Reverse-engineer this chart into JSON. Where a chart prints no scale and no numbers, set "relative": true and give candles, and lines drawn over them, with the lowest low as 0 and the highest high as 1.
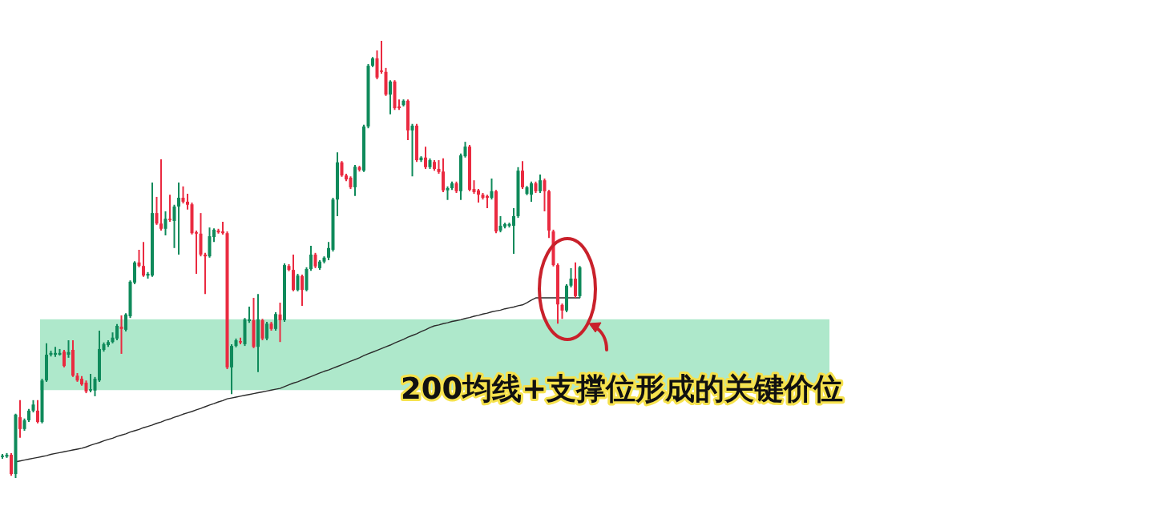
{
  "chart_data": {
    "type": "candlestick",
    "relative": true,
    "categories": [
      null,
      null,
      null,
      null,
      null,
      null,
      null,
      null,
      null,
      null,
      null,
      null,
      null,
      null,
      null,
      null,
      null,
      null,
      null,
      null,
      null,
      null,
      null,
      null,
      null,
      null,
      null,
      null,
      null,
      null,
      null,
      null,
      null,
      null,
      null,
      null,
      null,
      null,
      null,
      null,
      null,
      null,
      null,
      null,
      null,
      null,
      null,
      null,
      null,
      null,
      null,
      null,
      null,
      null,
      null,
      null,
      null,
      null,
      null,
      null,
      null,
      null,
      null,
      null,
      null,
      null,
      null,
      null,
      null,
      null,
      null,
      null,
      null,
      null,
      null,
      null,
      null,
      null,
      null,
      null,
      null,
      null,
      null,
      null,
      null,
      null,
      null,
      null,
      null,
      null,
      null,
      null,
      null,
      null,
      null,
      null,
      null,
      null,
      null,
      null,
      null,
      null,
      null,
      null,
      null,
      null,
      null,
      null,
      null,
      null,
      null,
      null,
      null,
      null,
      null,
      null,
      null,
      null,
      null,
      null,
      null,
      null,
      null,
      null,
      null,
      null,
      null,
      null,
      null,
      null,
      null,
      null
    ],
    "ohlc": [
      [
        0.048,
        0.055,
        0.044,
        0.051
      ],
      [
        0.049,
        0.057,
        0.046,
        0.053
      ],
      [
        0.053,
        0.057,
        0.005,
        0.009
      ],
      [
        0.009,
        0.147,
        0,
        0.145
      ],
      [
        0.139,
        0.178,
        0.092,
        0.112
      ],
      [
        0.112,
        0.136,
        0.108,
        0.132
      ],
      [
        0.132,
        0.158,
        0.128,
        0.154
      ],
      [
        0.154,
        0.178,
        0.15,
        0.168
      ],
      [
        0.154,
        0.178,
        0.125,
        0.128
      ],
      [
        0.128,
        0.227,
        0.125,
        0.223
      ],
      [
        0.223,
        0.308,
        0.22,
        0.282
      ],
      [
        0.282,
        0.291,
        0.278,
        0.286
      ],
      [
        0.282,
        0.3,
        0.277,
        0.286
      ],
      [
        0.282,
        0.295,
        0.28,
        0.286
      ],
      [
        0.289,
        0.293,
        0.253,
        0.256
      ],
      [
        0.282,
        0.315,
        0.275,
        0.288
      ],
      [
        0.293,
        0.315,
        0.231,
        0.234
      ],
      [
        0.234,
        0.24,
        0.22,
        0.223
      ],
      [
        0.227,
        0.233,
        0.211,
        0.214
      ],
      [
        0.218,
        0.223,
        0.194,
        0.198
      ],
      [
        0.2,
        0.238,
        0.196,
        0.203
      ],
      [
        0.2,
        0.231,
        0.187,
        0.227
      ],
      [
        0.223,
        0.337,
        0.22,
        0.295
      ],
      [
        0.293,
        0.31,
        0.289,
        0.306
      ],
      [
        0.304,
        0.315,
        0.3,
        0.311
      ],
      [
        0.311,
        0.333,
        0.308,
        0.321
      ],
      [
        0.319,
        0.352,
        0.315,
        0.348
      ],
      [
        0.346,
        0.372,
        0.284,
        0.341
      ],
      [
        0.339,
        0.377,
        0.335,
        0.374
      ],
      [
        0.37,
        0.452,
        0.366,
        0.449
      ],
      [
        0.447,
        0.496,
        0.443,
        0.493
      ],
      [
        0.493,
        0.522,
        0.482,
        0.485
      ],
      [
        0.485,
        0.54,
        0.46,
        0.463
      ],
      [
        0.463,
        0.471,
        0.456,
        0.467
      ],
      [
        0.463,
        0.676,
        0.46,
        0.606
      ],
      [
        0.606,
        0.643,
        0.579,
        0.582
      ],
      [
        0.582,
        0.729,
        0.566,
        0.57
      ],
      [
        0.57,
        0.61,
        0.555,
        0.593
      ],
      [
        0.593,
        0.648,
        0.586,
        0.59
      ],
      [
        0.588,
        0.625,
        0.526,
        0.621
      ],
      [
        0.621,
        0.676,
        0.511,
        0.641
      ],
      [
        0.641,
        0.667,
        0.628,
        0.632
      ],
      [
        0.632,
        0.65,
        0.614,
        0.625
      ],
      [
        0.626,
        0.63,
        0.557,
        0.56
      ],
      [
        0.562,
        0.566,
        0.467,
        0.559
      ],
      [
        0.559,
        0.606,
        0.507,
        0.511
      ],
      [
        0.511,
        0.515,
        0.421,
        0.507
      ],
      [
        0.507,
        0.573,
        0.504,
        0.553
      ],
      [
        0.551,
        0.571,
        0.54,
        0.568
      ],
      [
        0.566,
        0.57,
        0.559,
        0.562
      ],
      [
        0.564,
        0.586,
        0.557,
        0.56
      ],
      [
        0.56,
        0.564,
        0.249,
        0.253
      ],
      [
        0.253,
        0.306,
        0.192,
        0.302
      ],
      [
        0.302,
        0.319,
        0.299,
        0.315
      ],
      [
        0.313,
        0.321,
        0.306,
        0.31
      ],
      [
        0.306,
        0.366,
        0.302,
        0.363
      ],
      [
        0.359,
        0.392,
        0.355,
        0.363
      ],
      [
        0.361,
        0.412,
        0.297,
        0.3
      ],
      [
        0.3,
        0.421,
        0.242,
        0.363
      ],
      [
        0.361,
        0.364,
        0.315,
        0.319
      ],
      [
        0.319,
        0.357,
        0.315,
        0.353
      ],
      [
        0.353,
        0.357,
        0.337,
        0.341
      ],
      [
        0.341,
        0.379,
        0.337,
        0.375
      ],
      [
        0.374,
        0.401,
        0.311,
        0.361
      ],
      [
        0.361,
        0.491,
        0.357,
        0.487
      ],
      [
        0.485,
        0.489,
        0.473,
        0.476
      ],
      [
        0.476,
        0.511,
        0.427,
        0.43
      ],
      [
        0.43,
        0.467,
        0.427,
        0.463
      ],
      [
        0.462,
        0.465,
        0.394,
        0.43
      ],
      [
        0.43,
        0.482,
        0.427,
        0.478
      ],
      [
        0.478,
        0.531,
        0.474,
        0.511
      ],
      [
        0.511,
        0.515,
        0.48,
        0.484
      ],
      [
        0.48,
        0.498,
        0.476,
        0.495
      ],
      [
        0.495,
        0.507,
        0.491,
        0.504
      ],
      [
        0.504,
        0.54,
        0.498,
        0.526
      ],
      [
        0.522,
        0.641,
        0.518,
        0.637
      ],
      [
        0.637,
        0.745,
        0.599,
        0.722
      ],
      [
        0.722,
        0.725,
        0.689,
        0.692
      ],
      [
        0.692,
        0.696,
        0.679,
        0.683
      ],
      [
        0.687,
        0.69,
        0.661,
        0.665
      ],
      [
        0.665,
        0.716,
        0.645,
        0.712
      ],
      [
        0.711,
        0.714,
        0.701,
        0.705
      ],
      [
        0.703,
        0.808,
        0.7,
        0.804
      ],
      [
        0.804,
        0.947,
        0.8,
        0.943
      ],
      [
        0.943,
        0.963,
        0.94,
        0.96
      ],
      [
        0.96,
        0.978,
        0.912,
        0.916
      ],
      [
        0.932,
        1,
        0.925,
        0.929
      ],
      [
        0.929,
        0.938,
        0.874,
        0.877
      ],
      [
        0.877,
        0.91,
        0.832,
        0.907
      ],
      [
        0.907,
        0.91,
        0.842,
        0.846
      ],
      [
        0.85,
        0.866,
        0.842,
        0.846
      ],
      [
        0.853,
        0.866,
        0.85,
        0.863
      ],
      [
        0.863,
        0.866,
        0.773,
        0.795
      ],
      [
        0.795,
        0.81,
        0.69,
        0.806
      ],
      [
        0.806,
        0.81,
        0.723,
        0.727
      ],
      [
        0.727,
        0.736,
        0.723,
        0.733
      ],
      [
        0.733,
        0.758,
        0.707,
        0.711
      ],
      [
        0.711,
        0.731,
        0.707,
        0.727
      ],
      [
        0.723,
        0.727,
        0.703,
        0.707
      ],
      [
        0.707,
        0.727,
        0.696,
        0.7
      ],
      [
        0.701,
        0.731,
        0.654,
        0.658
      ],
      [
        0.658,
        0.667,
        0.636,
        0.663
      ],
      [
        0.663,
        0.678,
        0.659,
        0.674
      ],
      [
        0.674,
        0.678,
        0.652,
        0.656
      ],
      [
        0.656,
        0.742,
        0.636,
        0.738
      ],
      [
        0.736,
        0.769,
        0.733,
        0.758
      ],
      [
        0.758,
        0.762,
        0.656,
        0.659
      ],
      [
        0.661,
        0.681,
        0.65,
        0.654
      ],
      [
        0.658,
        0.661,
        0.63,
        0.648
      ],
      [
        0.648,
        0.652,
        0.637,
        0.641
      ],
      [
        0.645,
        0.648,
        0.617,
        0.641
      ],
      [
        0.641,
        0.685,
        0.637,
        0.656
      ],
      [
        0.656,
        0.659,
        0.56,
        0.564
      ],
      [
        0.566,
        0.599,
        0.562,
        0.577
      ],
      [
        0.575,
        0.584,
        0.571,
        0.581
      ],
      [
        0.577,
        0.584,
        0.573,
        0.581
      ],
      [
        0.577,
        0.617,
        0.513,
        0.599
      ],
      [
        0.599,
        0.711,
        0.595,
        0.703
      ],
      [
        0.703,
        0.725,
        0.661,
        0.665
      ],
      [
        0.65,
        0.668,
        0.647,
        0.665
      ],
      [
        0.648,
        0.678,
        0.632,
        0.674
      ],
      [
        0.674,
        0.678,
        0.652,
        0.656
      ],
      [
        0.656,
        0.694,
        0.652,
        0.681
      ],
      [
        0.681,
        0.685,
        0.61,
        0.656
      ],
      [
        0.656,
        0.659,
        0.549,
        0.566
      ],
      [
        0.564,
        0.568,
        0.484,
        0.487
      ],
      [
        0.487,
        0.491,
        0.353,
        0.397
      ],
      [
        0.396,
        0.399,
        0.364,
        0.383
      ],
      [
        0.383,
        0.443,
        0.379,
        0.44
      ],
      [
        0.44,
        0.48,
        0.436,
        0.456
      ],
      [
        0.456,
        0.493,
        0.412,
        0.416
      ],
      [
        0.416,
        0.485,
        0.412,
        0.482
      ]
    ],
    "series": [
      {
        "type": "line",
        "color": "#2b2b2b",
        "values": [
          null,
          null,
          null,
          0.037,
          0.039,
          0.041,
          0.043,
          0.045,
          0.047,
          0.049,
          0.051,
          0.054,
          0.056,
          0.058,
          0.06,
          0.062,
          0.064,
          0.066,
          0.068,
          0.071,
          0.075,
          0.078,
          0.081,
          0.085,
          0.088,
          0.091,
          0.095,
          0.098,
          0.101,
          0.105,
          0.108,
          0.111,
          0.115,
          0.118,
          0.121,
          0.125,
          0.128,
          0.132,
          0.135,
          0.139,
          0.142,
          0.146,
          0.149,
          0.152,
          0.156,
          0.159,
          0.163,
          0.167,
          0.17,
          0.174,
          0.177,
          0.181,
          0.183,
          0.185,
          0.187,
          0.189,
          0.191,
          0.193,
          0.195,
          0.197,
          0.199,
          0.201,
          0.203,
          0.205,
          0.209,
          0.213,
          0.217,
          0.22,
          0.224,
          0.228,
          0.232,
          0.236,
          0.24,
          0.244,
          0.247,
          0.251,
          0.255,
          0.259,
          0.263,
          0.267,
          0.271,
          0.275,
          0.28,
          0.284,
          0.288,
          0.292,
          0.296,
          0.3,
          0.304,
          0.309,
          0.313,
          0.317,
          0.322,
          0.326,
          0.33,
          0.335,
          0.339,
          0.344,
          0.348,
          0.35,
          0.353,
          0.355,
          0.358,
          0.36,
          0.362,
          0.365,
          0.367,
          0.37,
          0.372,
          0.375,
          0.377,
          0.38,
          0.382,
          0.384,
          0.387,
          0.389,
          0.391,
          0.394,
          0.396,
          0.401,
          0.407,
          0.412,
          0.412,
          0.412,
          0.412,
          0.412,
          0.412,
          0.412,
          0.412,
          0.412,
          0.412,
          0.412
        ]
      }
    ],
    "bands": [
      {
        "axis": "y",
        "from": 0.201,
        "to": 0.363,
        "color": "#aee8cb"
      }
    ],
    "annotations": [
      "200均线+支撑位形成的关键价位"
    ]
  }
}
